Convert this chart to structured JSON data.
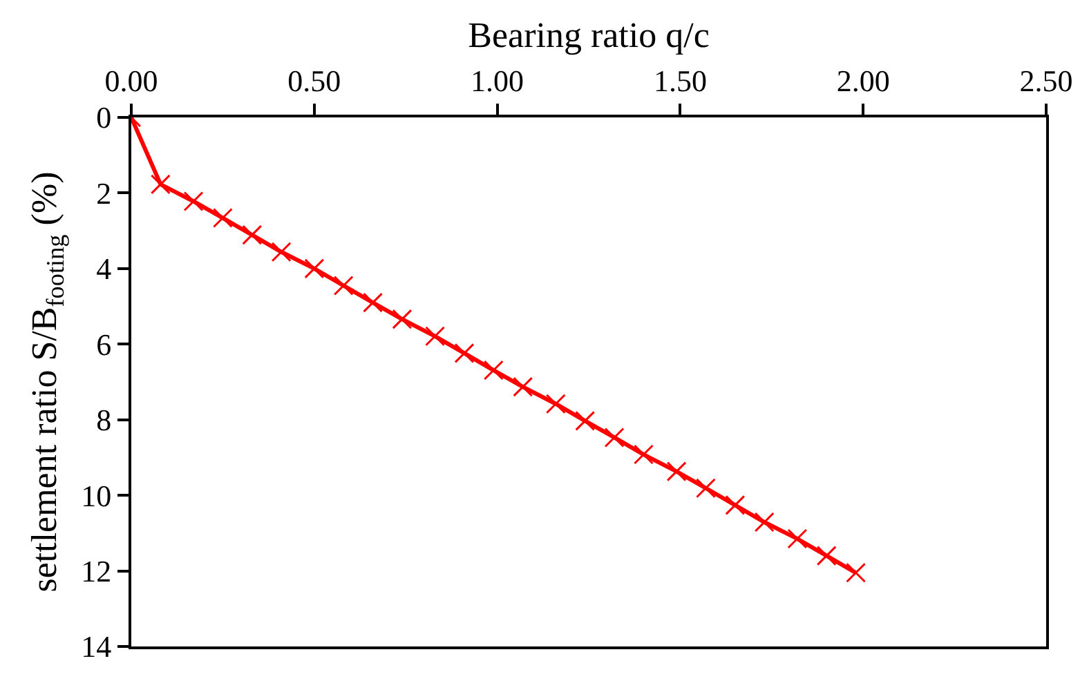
{
  "chart_data": {
    "type": "line",
    "xlabel": "Bearing ratio q/c",
    "ylabel": "settlement ratio S/B$_{footing}$ (%)",
    "x": [
      0,
      0.08,
      0.17,
      0.25,
      0.33,
      0.41,
      0.5,
      0.58,
      0.66,
      0.74,
      0.83,
      0.91,
      0.99,
      1.07,
      1.16,
      1.24,
      1.32,
      1.4,
      1.49,
      1.57,
      1.65,
      1.73,
      1.82,
      1.9,
      1.98
    ],
    "series": [
      {
        "color": "#ff0000",
        "values": [
          0,
          1.77,
          2.22,
          2.66,
          3.11,
          3.56,
          4.0,
          4.45,
          4.9,
          5.34,
          5.79,
          6.24,
          6.69,
          7.13,
          7.58,
          8.03,
          8.47,
          8.92,
          9.37,
          9.81,
          10.26,
          10.71,
          11.15,
          11.6,
          12.05
        ]
      }
    ],
    "xlim": [
      0,
      2.5
    ],
    "xticks": [
      {
        "value": 0,
        "label": "0.00"
      },
      {
        "value": 0.5,
        "label": "0.50"
      },
      {
        "value": 1,
        "label": "1.00"
      },
      {
        "value": 1.5,
        "label": "1.50"
      },
      {
        "value": 2,
        "label": "2.00"
      },
      {
        "value": 2.5,
        "label": "2.50"
      }
    ],
    "ylim": [
      14,
      0
    ],
    "yticks": [
      0,
      2,
      4,
      6,
      8,
      10,
      12,
      14
    ],
    "legend": false,
    "marker": "cross",
    "line_style": "solid"
  }
}
